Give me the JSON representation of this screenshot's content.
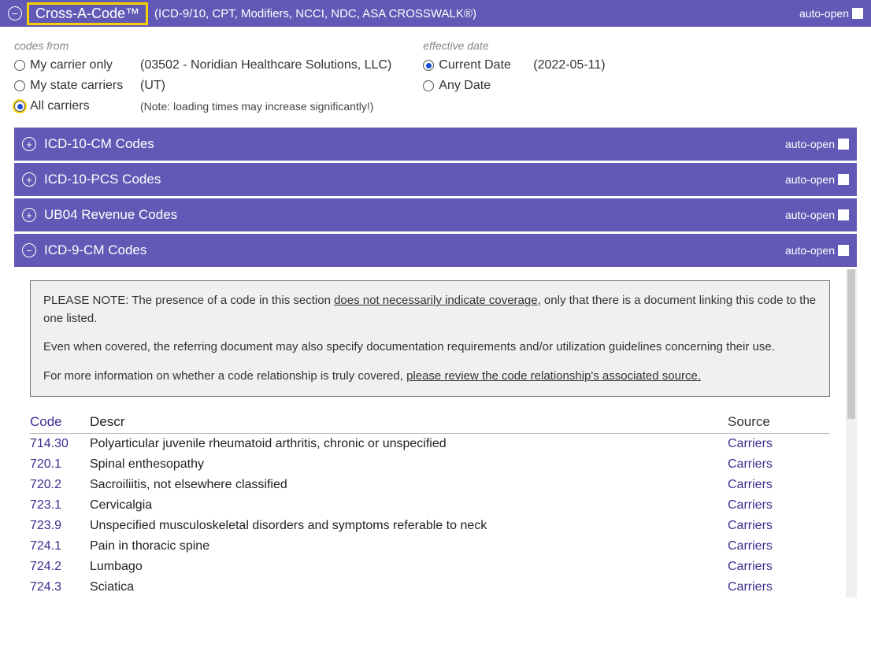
{
  "header": {
    "title": "Cross-A-Code™",
    "subtitle": "(ICD-9/10, CPT, Modifiers, NCCI, NDC, ASA CROSSWALK®)",
    "auto_open_label": "auto-open"
  },
  "filters": {
    "codes_from_label": "codes from",
    "effective_date_label": "effective date",
    "codes_from": [
      {
        "label": "My carrier only",
        "detail": "(03502 - Noridian Healthcare Solutions, LLC)",
        "selected": false,
        "highlighted": false
      },
      {
        "label": "My state carriers",
        "detail": "(UT)",
        "selected": false,
        "highlighted": false
      },
      {
        "label": "All carriers",
        "detail": "(Note: loading times may increase significantly!)",
        "selected": true,
        "highlighted": true,
        "is_note": true
      }
    ],
    "effective_date": [
      {
        "label": "Current Date",
        "detail": "(2022-05-11)",
        "selected": true
      },
      {
        "label": "Any Date",
        "detail": "",
        "selected": false
      }
    ]
  },
  "sections": [
    {
      "title": "ICD-10-CM Codes",
      "expanded": false,
      "auto_open_label": "auto-open"
    },
    {
      "title": "ICD-10-PCS Codes",
      "expanded": false,
      "auto_open_label": "auto-open"
    },
    {
      "title": "UB04 Revenue Codes",
      "expanded": false,
      "auto_open_label": "auto-open"
    },
    {
      "title": "ICD-9-CM Codes",
      "expanded": true,
      "auto_open_label": "auto-open"
    }
  ],
  "note": {
    "p1_a": "PLEASE NOTE: The presence of a code in this section ",
    "p1_u": "does not necessarily indicate coverage",
    "p1_b": ", only that there is a document linking this code to the one listed.",
    "p2": "Even when covered, the referring document may also specify documentation requirements and/or utilization guidelines concerning their use.",
    "p3_a": "For more information on whether a code relationship is truly covered, ",
    "p3_u": "please review the code relationship's associated source."
  },
  "table": {
    "headers": {
      "code": "Code",
      "descr": "Descr",
      "source": "Source"
    },
    "rows": [
      {
        "code": "714.30",
        "descr": "Polyarticular juvenile rheumatoid arthritis, chronic or unspecified",
        "source": "Carriers"
      },
      {
        "code": "720.1",
        "descr": "Spinal enthesopathy",
        "source": "Carriers"
      },
      {
        "code": "720.2",
        "descr": "Sacroiliitis, not elsewhere classified",
        "source": "Carriers"
      },
      {
        "code": "723.1",
        "descr": "Cervicalgia",
        "source": "Carriers"
      },
      {
        "code": "723.9",
        "descr": "Unspecified musculoskeletal disorders and symptoms referable to neck",
        "source": "Carriers"
      },
      {
        "code": "724.1",
        "descr": "Pain in thoracic spine",
        "source": "Carriers"
      },
      {
        "code": "724.2",
        "descr": "Lumbago",
        "source": "Carriers"
      },
      {
        "code": "724.3",
        "descr": "Sciatica",
        "source": "Carriers"
      }
    ]
  },
  "colors": {
    "primary": "#6159b5",
    "highlight": "#f7d200",
    "link": "#3a2f8f"
  }
}
